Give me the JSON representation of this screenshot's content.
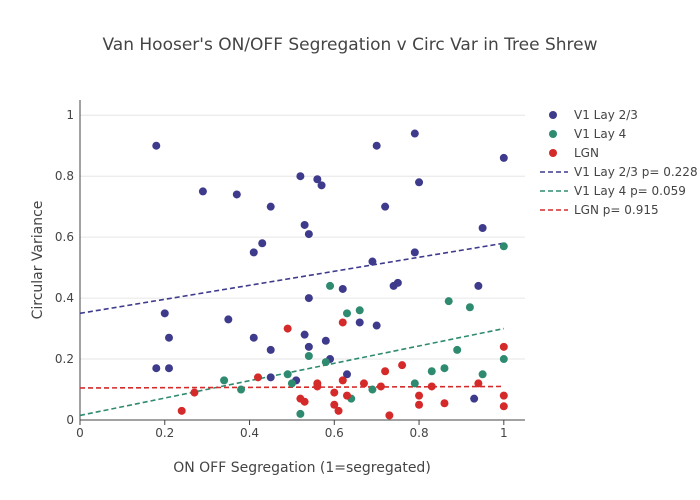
{
  "chart_data": {
    "type": "scatter",
    "title": "Van Hooser's ON/OFF Segregation v Circ Var in Tree Shrew",
    "xlabel": "ON OFF Segregation (1=segregated)",
    "ylabel": "Circular Variance",
    "xlim": [
      0,
      1.05
    ],
    "ylim": [
      0,
      1.05
    ],
    "x_ticks": [
      {
        "value": 0,
        "label": "0"
      },
      {
        "value": 0.2,
        "label": "0.2"
      },
      {
        "value": 0.4,
        "label": "0.4"
      },
      {
        "value": 0.6,
        "label": "0.6"
      },
      {
        "value": 0.8,
        "label": "0.8"
      },
      {
        "value": 1,
        "label": "1"
      }
    ],
    "y_ticks": [
      {
        "value": 0,
        "label": "0"
      },
      {
        "value": 0.2,
        "label": "0.2"
      },
      {
        "value": 0.4,
        "label": "0.4"
      },
      {
        "value": 0.6,
        "label": "0.6"
      },
      {
        "value": 0.8,
        "label": "0.8"
      },
      {
        "value": 1,
        "label": "1"
      }
    ],
    "legend_position": "top-right",
    "series": [
      {
        "name": "V1 Lay 2/3",
        "color": "#3f3b8c",
        "points": [
          [
            0.18,
            0.9
          ],
          [
            0.29,
            0.75
          ],
          [
            0.37,
            0.74
          ],
          [
            0.52,
            0.8
          ],
          [
            0.56,
            0.79
          ],
          [
            0.57,
            0.77
          ],
          [
            0.45,
            0.7
          ],
          [
            0.72,
            0.7
          ],
          [
            0.7,
            0.9
          ],
          [
            0.79,
            0.94
          ],
          [
            0.8,
            0.78
          ],
          [
            1.0,
            0.86
          ],
          [
            0.53,
            0.64
          ],
          [
            0.54,
            0.61
          ],
          [
            0.43,
            0.58
          ],
          [
            0.41,
            0.55
          ],
          [
            0.95,
            0.63
          ],
          [
            0.69,
            0.52
          ],
          [
            0.79,
            0.55
          ],
          [
            0.75,
            0.45
          ],
          [
            0.74,
            0.44
          ],
          [
            0.94,
            0.44
          ],
          [
            0.62,
            0.43
          ],
          [
            0.54,
            0.4
          ],
          [
            0.2,
            0.35
          ],
          [
            0.35,
            0.33
          ],
          [
            0.66,
            0.32
          ],
          [
            0.7,
            0.31
          ],
          [
            0.53,
            0.28
          ],
          [
            0.21,
            0.27
          ],
          [
            0.41,
            0.27
          ],
          [
            0.58,
            0.26
          ],
          [
            0.45,
            0.23
          ],
          [
            0.54,
            0.24
          ],
          [
            0.59,
            0.2
          ],
          [
            0.18,
            0.17
          ],
          [
            0.21,
            0.17
          ],
          [
            0.63,
            0.15
          ],
          [
            0.45,
            0.14
          ],
          [
            0.51,
            0.13
          ],
          [
            0.93,
            0.07
          ]
        ]
      },
      {
        "name": "V1 Lay 4",
        "color": "#2e8b6f",
        "points": [
          [
            1.0,
            0.57
          ],
          [
            0.59,
            0.44
          ],
          [
            0.87,
            0.39
          ],
          [
            0.66,
            0.36
          ],
          [
            0.63,
            0.35
          ],
          [
            0.92,
            0.37
          ],
          [
            0.89,
            0.23
          ],
          [
            0.54,
            0.21
          ],
          [
            0.58,
            0.19
          ],
          [
            1.0,
            0.2
          ],
          [
            0.86,
            0.17
          ],
          [
            0.83,
            0.16
          ],
          [
            0.95,
            0.15
          ],
          [
            0.49,
            0.15
          ],
          [
            0.34,
            0.13
          ],
          [
            0.5,
            0.12
          ],
          [
            0.79,
            0.12
          ],
          [
            0.38,
            0.1
          ],
          [
            0.69,
            0.1
          ],
          [
            0.64,
            0.07
          ],
          [
            0.52,
            0.02
          ]
        ]
      },
      {
        "name": "LGN",
        "color": "#d42a2a",
        "points": [
          [
            0.49,
            0.3
          ],
          [
            0.62,
            0.32
          ],
          [
            1.0,
            0.24
          ],
          [
            0.76,
            0.18
          ],
          [
            0.72,
            0.16
          ],
          [
            0.42,
            0.14
          ],
          [
            0.62,
            0.13
          ],
          [
            0.56,
            0.12
          ],
          [
            0.67,
            0.12
          ],
          [
            0.56,
            0.11
          ],
          [
            0.71,
            0.11
          ],
          [
            0.83,
            0.11
          ],
          [
            0.94,
            0.12
          ],
          [
            0.27,
            0.09
          ],
          [
            0.6,
            0.09
          ],
          [
            0.63,
            0.08
          ],
          [
            0.8,
            0.08
          ],
          [
            1.0,
            0.08
          ],
          [
            0.52,
            0.07
          ],
          [
            0.53,
            0.06
          ],
          [
            0.6,
            0.05
          ],
          [
            0.8,
            0.05
          ],
          [
            0.86,
            0.055
          ],
          [
            1.0,
            0.045
          ],
          [
            0.24,
            0.03
          ],
          [
            0.61,
            0.03
          ],
          [
            0.73,
            0.015
          ]
        ]
      }
    ],
    "trendlines": [
      {
        "name": "V1 Lay 2/3 p= 0.228",
        "color": "#3f3b8c",
        "from": [
          0,
          0.35
        ],
        "to": [
          1,
          0.58
        ]
      },
      {
        "name": "V1 Lay 4 p= 0.059",
        "color": "#2e8b6f",
        "from": [
          0,
          0.015
        ],
        "to": [
          1,
          0.3
        ]
      },
      {
        "name": "LGN p= 0.915",
        "color": "#d42a2a",
        "from": [
          0,
          0.105
        ],
        "to": [
          1,
          0.11
        ]
      }
    ]
  }
}
